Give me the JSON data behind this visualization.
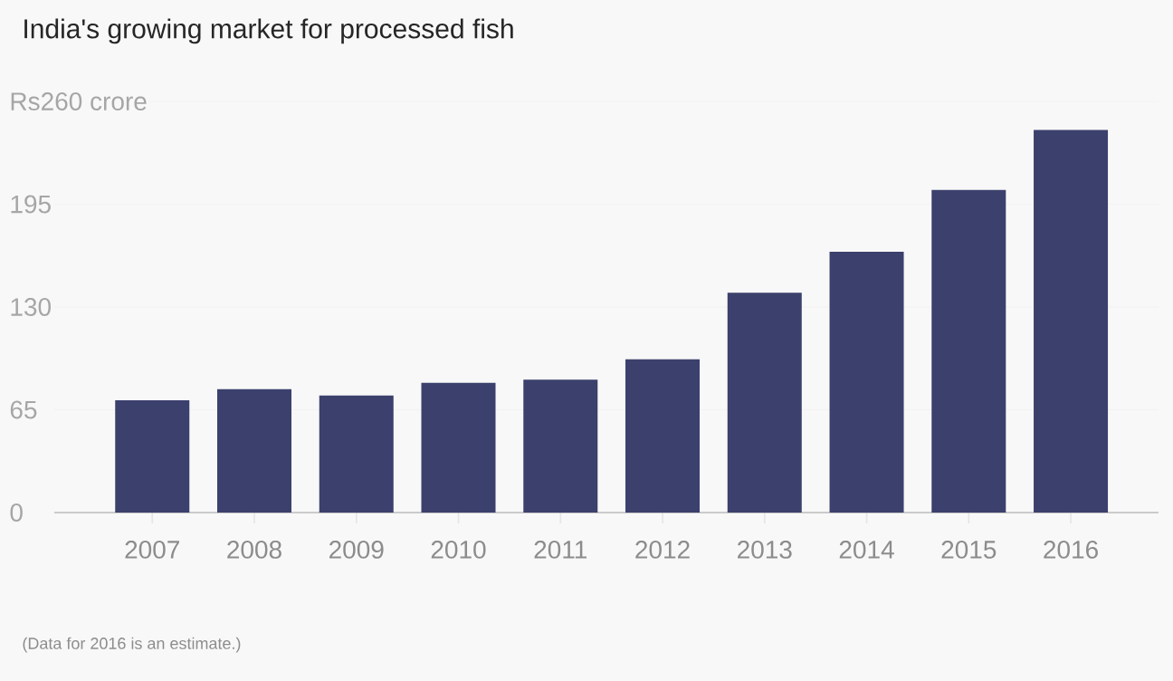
{
  "chart_data": {
    "type": "bar",
    "title": "India's growing market for processed fish",
    "categories": [
      "2007",
      "2008",
      "2009",
      "2010",
      "2011",
      "2012",
      "2013",
      "2014",
      "2015",
      "2016"
    ],
    "values": [
      71,
      78,
      74,
      82,
      84,
      97,
      139,
      165,
      204,
      242
    ],
    "color": "#3b406c",
    "ylim": [
      0,
      260
    ],
    "yticks": [
      0,
      65,
      130,
      195,
      {
        "value": 260,
        "label": "Rs260 crore"
      }
    ],
    "grid": "y",
    "annotations": [
      "(Data for 2016 is an estimate.)"
    ]
  }
}
